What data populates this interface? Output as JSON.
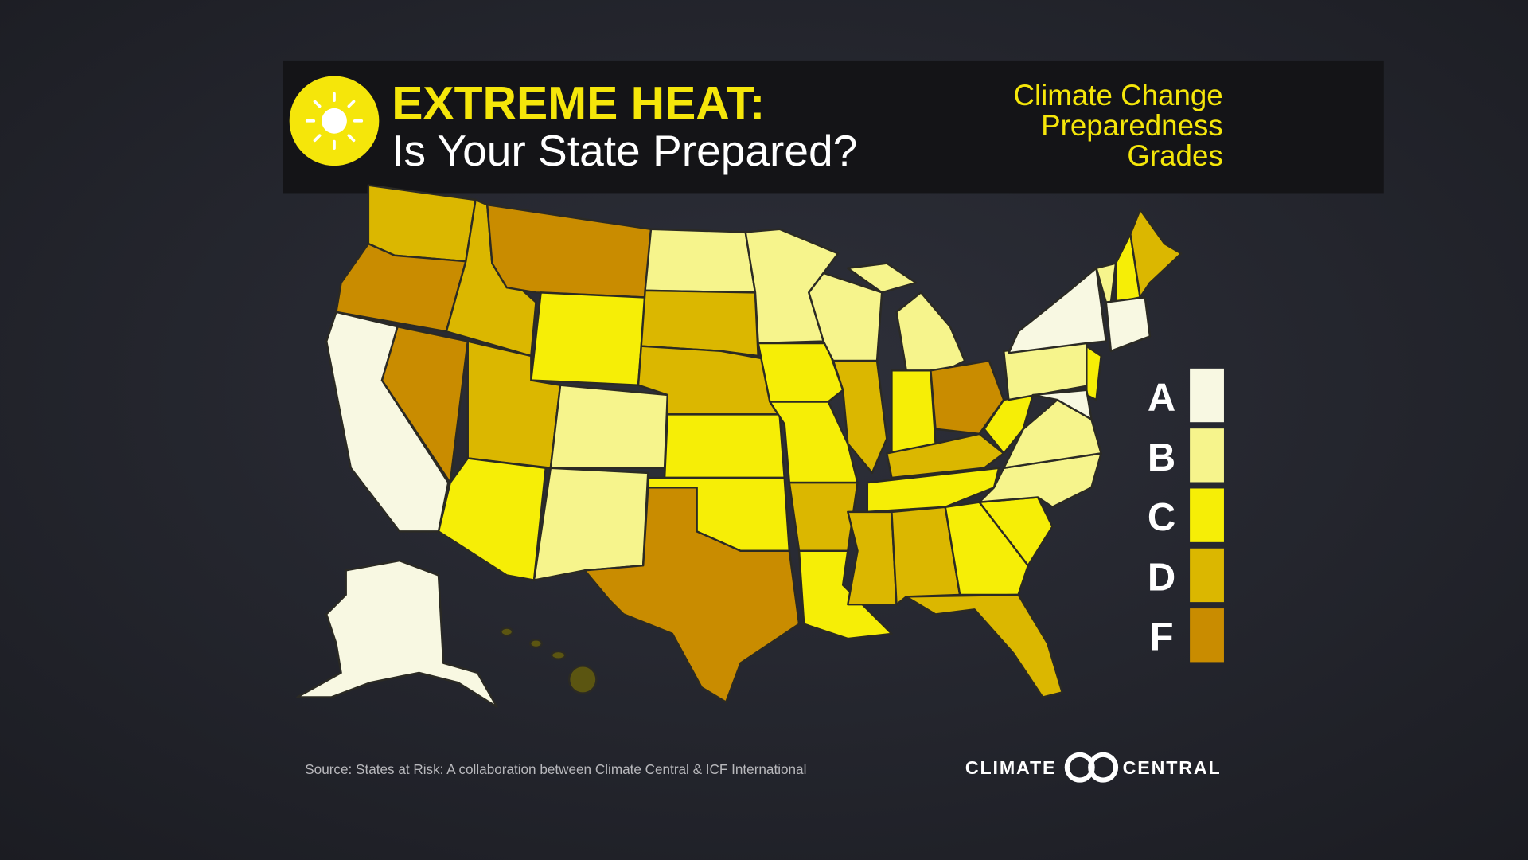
{
  "header": {
    "title": "EXTREME HEAT:",
    "subtitle": "Is Your State Prepared?"
  },
  "legend": {
    "title_lines": [
      "Climate Change",
      "Preparedness",
      "Grades"
    ],
    "grades": [
      {
        "label": "A",
        "color": "#f8f8e2"
      },
      {
        "label": "B",
        "color": "#f6f48c"
      },
      {
        "label": "C",
        "color": "#f6ee06"
      },
      {
        "label": "D",
        "color": "#dbb700"
      },
      {
        "label": "F",
        "color": "#c98c00"
      }
    ]
  },
  "footer": {
    "source": "Source: States at Risk: A collaboration between Climate Central & ICF International",
    "logo_left": "CLIMATE",
    "logo_right": "CENTRAL"
  }
}
